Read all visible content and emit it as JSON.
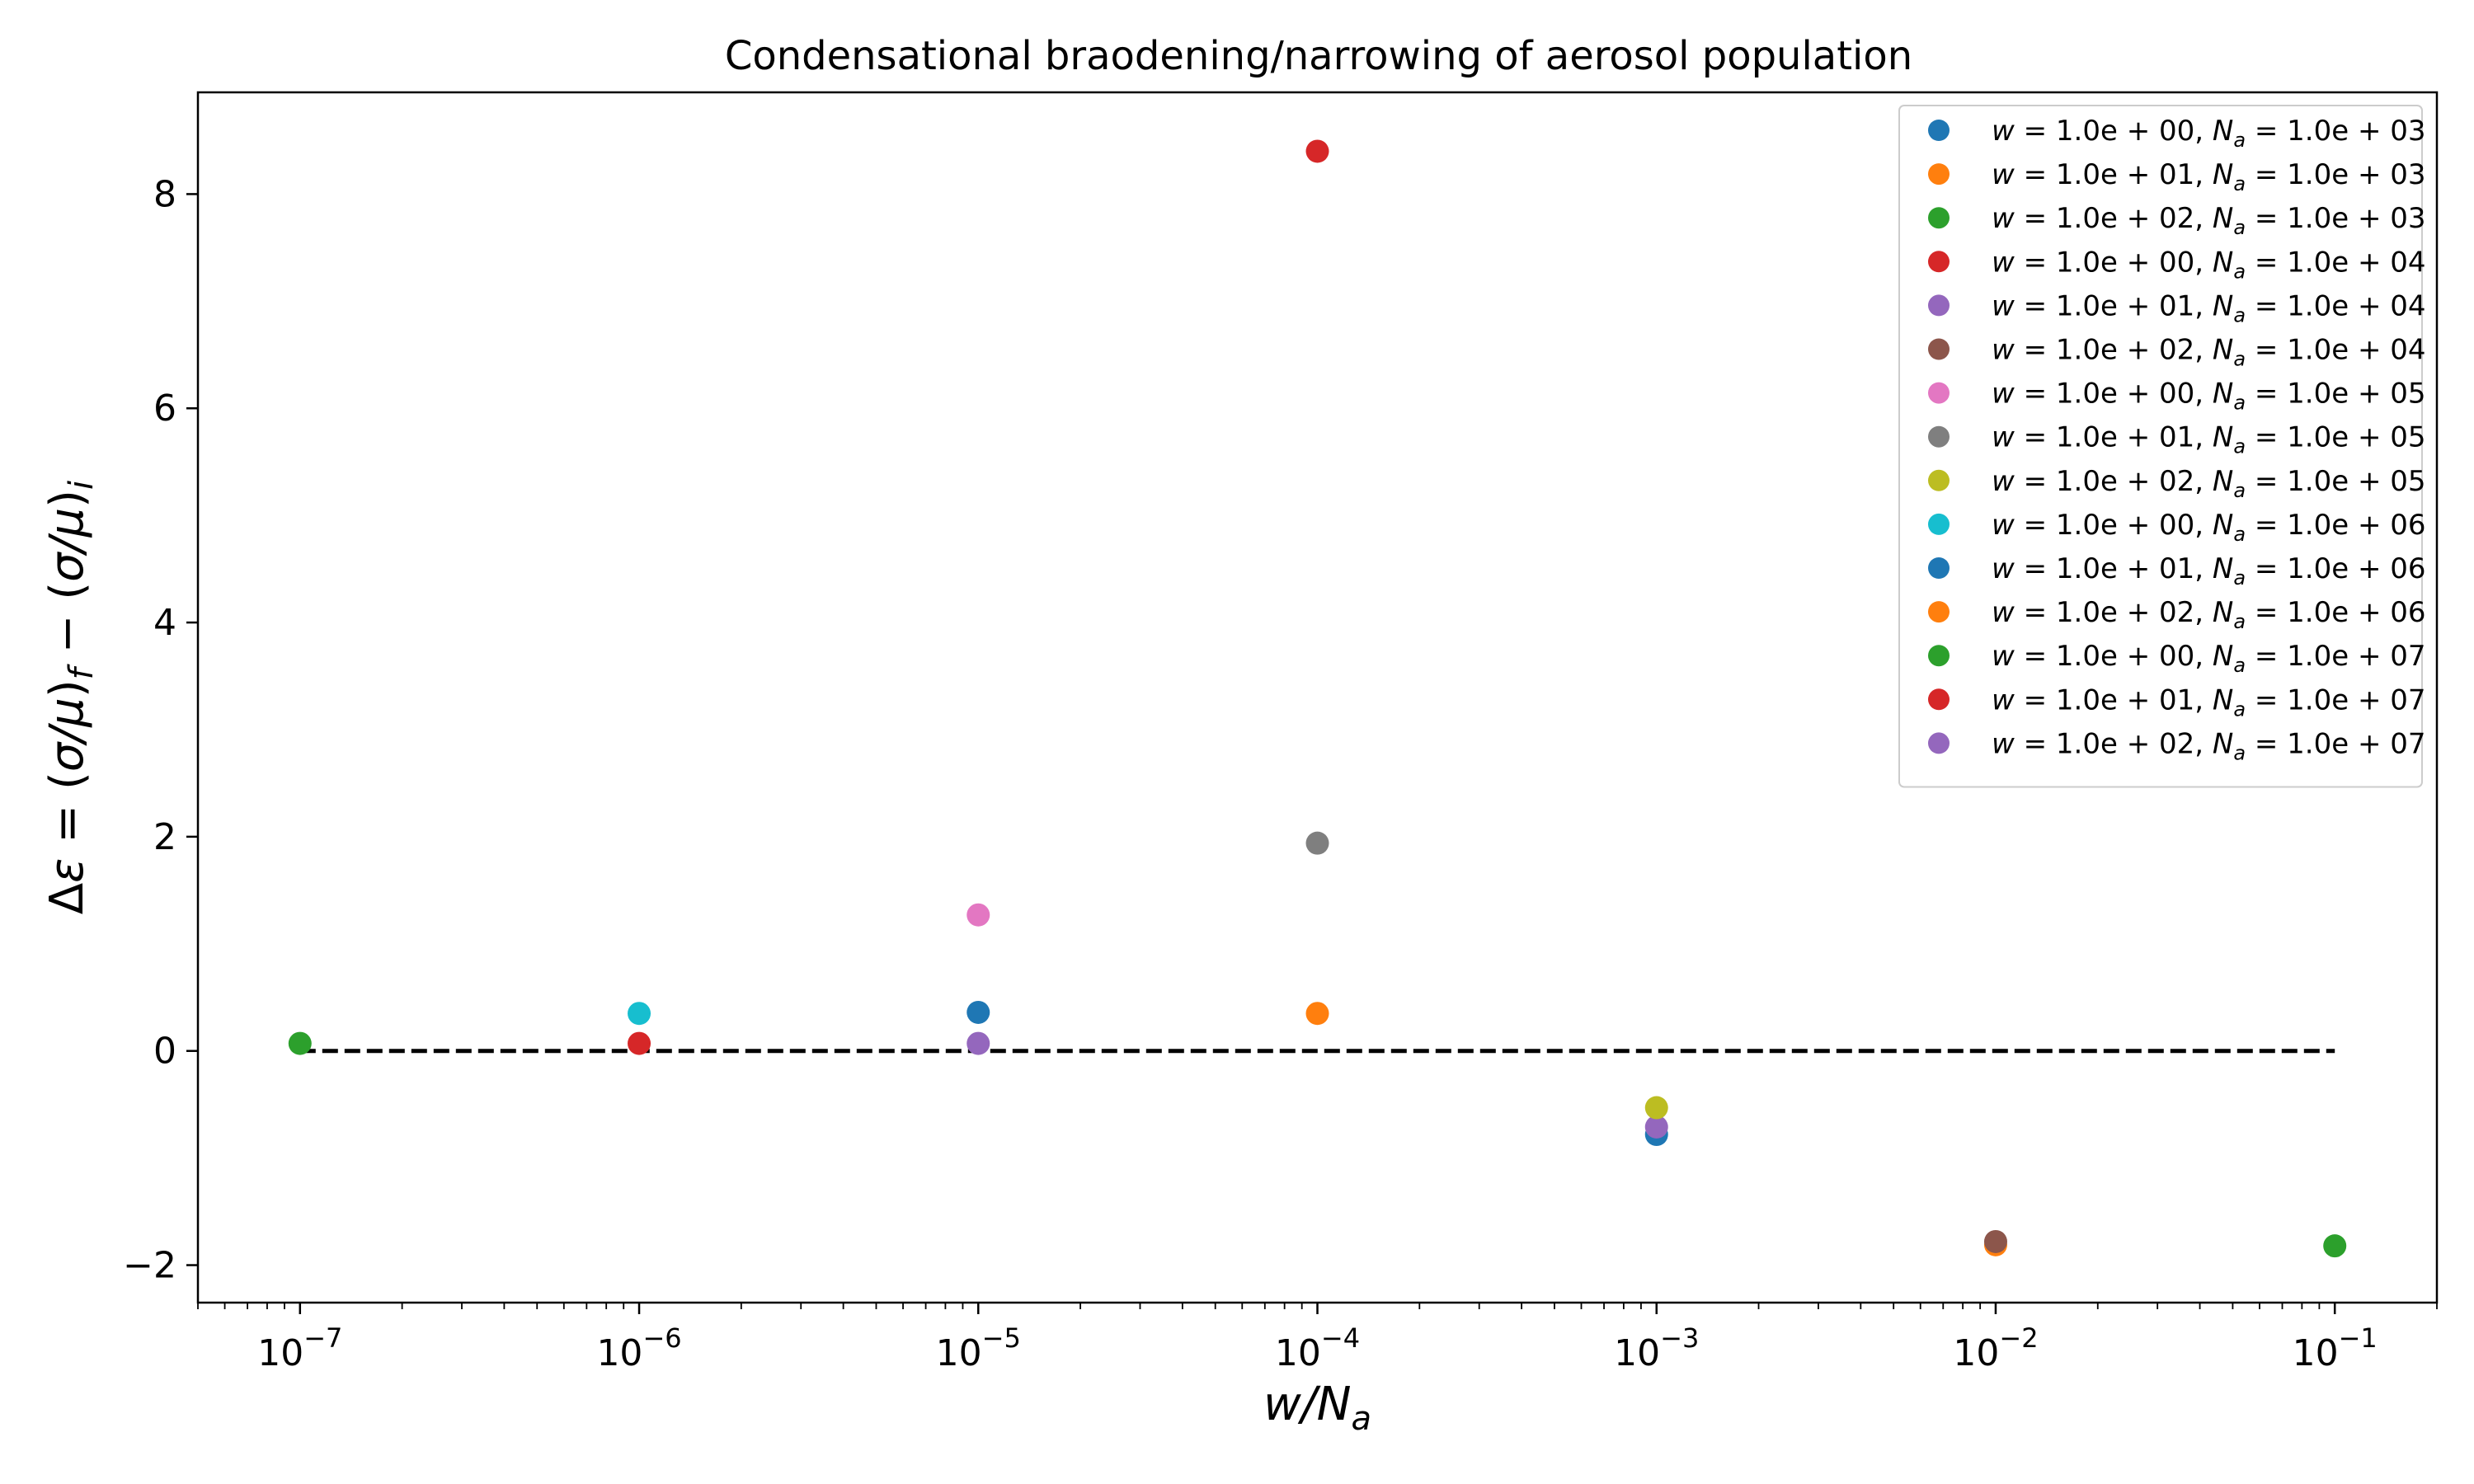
{
  "chart_data": {
    "type": "scatter",
    "title": "Condensational braodening/narrowing of aerosol population",
    "xlabel": "w/N_a",
    "ylabel": "Δε = (σ/μ)_f − (σ/μ)_i",
    "xscale": "log",
    "xlim": [
      5e-08,
      0.2
    ],
    "ylim": [
      -2.35,
      8.95
    ],
    "y_ticks": [
      -2,
      0,
      2,
      4,
      6,
      8
    ],
    "x_ticks": [
      -7,
      -6,
      -5,
      -4,
      -3,
      -2,
      -1
    ],
    "grid": false,
    "legend_position": "top-right",
    "reference_line": {
      "y": 0,
      "x_from": 1e-07,
      "x_to": 0.1,
      "style": "dashed",
      "color": "#000000"
    },
    "series": [
      {
        "w": "1.0e+00",
        "Na": "1.0e+03",
        "color": "#1f77b4",
        "x": 0.001,
        "y": -0.78
      },
      {
        "w": "1.0e+01",
        "Na": "1.0e+03",
        "color": "#ff7f0e",
        "x": 0.01,
        "y": -1.81
      },
      {
        "w": "1.0e+02",
        "Na": "1.0e+03",
        "color": "#2ca02c",
        "x": 0.1,
        "y": -1.82
      },
      {
        "w": "1.0e+00",
        "Na": "1.0e+04",
        "color": "#d62728",
        "x": 0.0001,
        "y": 8.4
      },
      {
        "w": "1.0e+01",
        "Na": "1.0e+04",
        "color": "#9467bd",
        "x": 0.001,
        "y": -0.71
      },
      {
        "w": "1.0e+02",
        "Na": "1.0e+04",
        "color": "#8c564b",
        "x": 0.01,
        "y": -1.78
      },
      {
        "w": "1.0e+00",
        "Na": "1.0e+05",
        "color": "#e377c2",
        "x": 1e-05,
        "y": 1.27
      },
      {
        "w": "1.0e+01",
        "Na": "1.0e+05",
        "color": "#7f7f7f",
        "x": 0.0001,
        "y": 1.94
      },
      {
        "w": "1.0e+02",
        "Na": "1.0e+05",
        "color": "#bcbd22",
        "x": 0.001,
        "y": -0.53
      },
      {
        "w": "1.0e+00",
        "Na": "1.0e+06",
        "color": "#17becf",
        "x": 1e-06,
        "y": 0.35
      },
      {
        "w": "1.0e+01",
        "Na": "1.0e+06",
        "color": "#1f77b4",
        "x": 1e-05,
        "y": 0.36
      },
      {
        "w": "1.0e+02",
        "Na": "1.0e+06",
        "color": "#ff7f0e",
        "x": 0.0001,
        "y": 0.35
      },
      {
        "w": "1.0e+00",
        "Na": "1.0e+07",
        "color": "#2ca02c",
        "x": 1e-07,
        "y": 0.07
      },
      {
        "w": "1.0e+01",
        "Na": "1.0e+07",
        "color": "#d62728",
        "x": 1e-06,
        "y": 0.07
      },
      {
        "w": "1.0e+02",
        "Na": "1.0e+07",
        "color": "#9467bd",
        "x": 1e-05,
        "y": 0.07
      }
    ]
  }
}
